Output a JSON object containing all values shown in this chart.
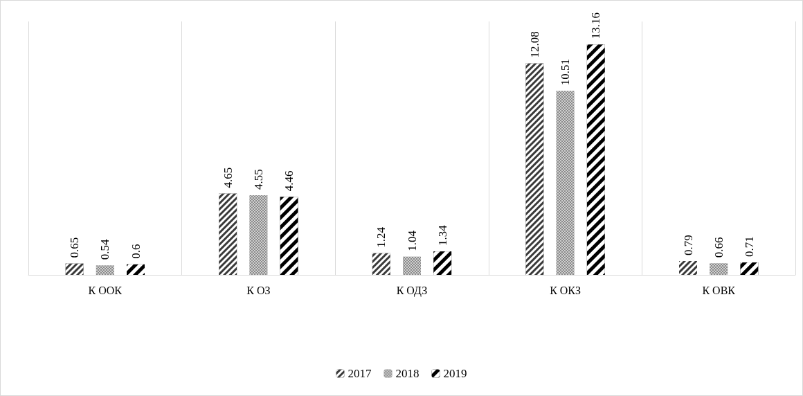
{
  "chart_data": {
    "type": "bar",
    "categories": [
      "К ООК",
      "К ОЗ",
      "К ОДЗ",
      "К ОКЗ",
      "К ОВК"
    ],
    "series": [
      {
        "name": "2017",
        "color": "#3a3a3a",
        "values": [
          0.65,
          4.65,
          1.24,
          12.08,
          0.79
        ]
      },
      {
        "name": "2018",
        "color": "#8a8a8a",
        "values": [
          0.54,
          4.55,
          1.04,
          10.51,
          0.66
        ]
      },
      {
        "name": "2019",
        "color": "#000000",
        "values": [
          0.6,
          4.46,
          1.34,
          13.16,
          0.71
        ]
      }
    ],
    "data_labels": true,
    "grid": "x",
    "legend": "bottom"
  }
}
